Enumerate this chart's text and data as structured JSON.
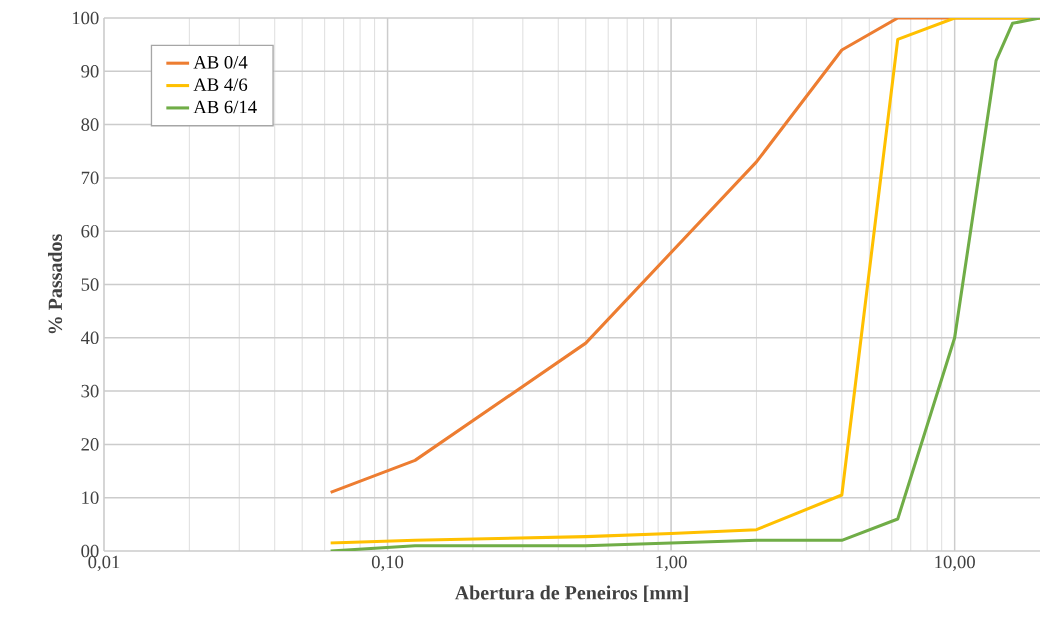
{
  "chart_data": {
    "type": "line",
    "xlabel": "Abertura de Peneiros [mm]",
    "ylabel": "% Passados",
    "log": "x",
    "grid": true,
    "legend": "top left",
    "marker": "none",
    "line_style": "solid",
    "xlim": [
      0.01,
      20
    ],
    "ylim": [
      0,
      100
    ],
    "xticks": [
      {
        "value": 0.01,
        "label": "0,01"
      },
      {
        "value": 0.1,
        "label": "0,10"
      },
      {
        "value": 1,
        "label": "1,00"
      },
      {
        "value": 10,
        "label": "10,00"
      }
    ],
    "yticks": [
      {
        "value": 0,
        "label": "00"
      },
      10,
      20,
      30,
      40,
      50,
      60,
      70,
      80,
      90,
      100
    ],
    "series": [
      {
        "name": "AB 0/4",
        "color": "#ed7d31",
        "x": [
          0.063,
          0.125,
          0.5,
          2,
          4,
          6.3,
          10,
          20
        ],
        "values": [
          11,
          17,
          39,
          73,
          94,
          100,
          100,
          100
        ]
      },
      {
        "name": "AB 4/6",
        "color": "#ffc000",
        "x": [
          0.063,
          0.125,
          0.5,
          1,
          2,
          4,
          6.3,
          10,
          20
        ],
        "values": [
          1.5,
          2,
          2.7,
          3.3,
          4,
          10.5,
          96,
          100,
          100
        ]
      },
      {
        "name": "AB 6/14",
        "color": "#70ad47",
        "x": [
          0.063,
          0.125,
          0.5,
          1,
          2,
          4,
          6.3,
          10,
          14,
          16,
          20
        ],
        "values": [
          0,
          1,
          1,
          1.5,
          2,
          2,
          6,
          40,
          92,
          99,
          100
        ]
      }
    ]
  }
}
